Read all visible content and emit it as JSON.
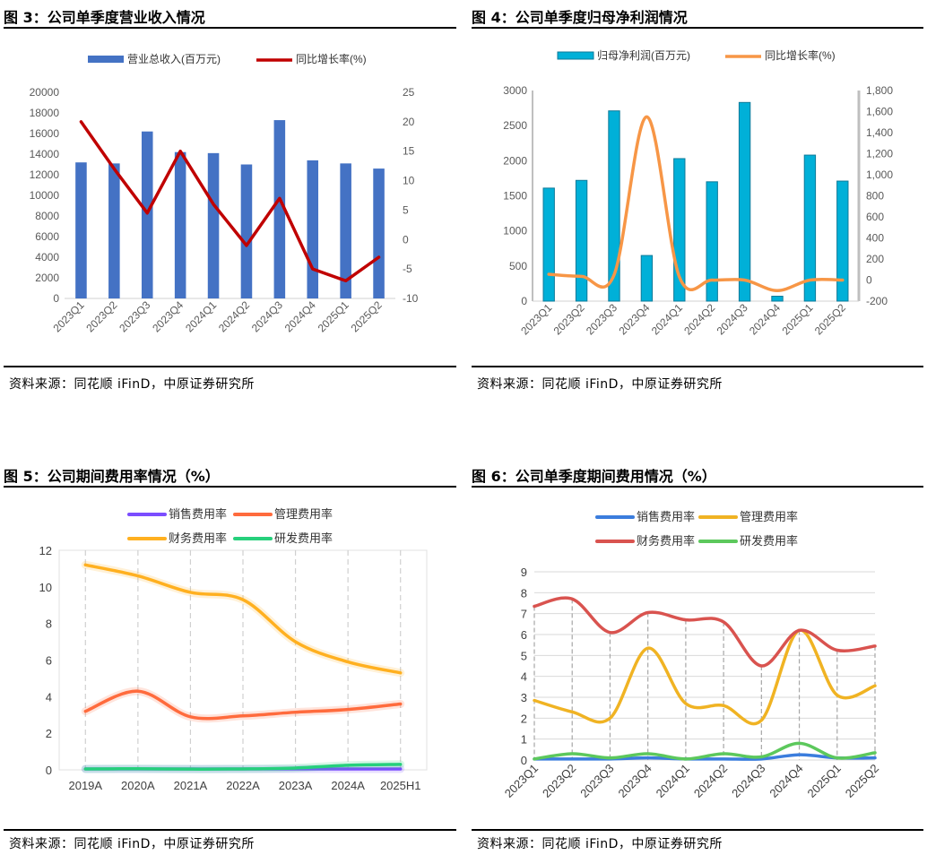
{
  "panels": [
    {
      "title": "图 3：公司单季度营业收入情况",
      "source": "资料来源：同花顺 iFinD，中原证券研究所"
    },
    {
      "title": "图 4：公司单季度归母净利润情况",
      "source": "资料来源：同花顺 iFinD，中原证券研究所"
    },
    {
      "title": "图 5：公司期间费用率情况（%）",
      "source": "资料来源：同花顺 iFinD，中原证券研究所"
    },
    {
      "title": "图 6：公司单季度期间费用情况（%）",
      "source": "资料来源：同花顺 iFinD，中原证券研究所"
    }
  ],
  "chart_data": [
    {
      "id": "fig3",
      "type": "bar+line",
      "categories": [
        "2023Q1",
        "2023Q2",
        "2023Q3",
        "2023Q4",
        "2024Q1",
        "2024Q2",
        "2024Q3",
        "2024Q4",
        "2025Q1",
        "2025Q2"
      ],
      "series": [
        {
          "name": "营业总收入(百万元)",
          "type": "bar",
          "axis": "left",
          "color": "#4472c4",
          "values": [
            13200,
            13100,
            16200,
            14200,
            14100,
            13000,
            17300,
            13400,
            13100,
            12600
          ]
        },
        {
          "name": "同比增长率(%)",
          "type": "line",
          "axis": "right",
          "color": "#c00000",
          "values": [
            20.0,
            12.0,
            4.5,
            15.0,
            6.0,
            -1.0,
            7.0,
            -5.0,
            -7.0,
            -3.0
          ]
        }
      ],
      "yleft": {
        "min": 0,
        "max": 20000,
        "step": 2000,
        "ticks": [
          "0",
          "2000",
          "4000",
          "6000",
          "8000",
          "10000",
          "12000",
          "14000",
          "16000",
          "18000",
          "20000"
        ]
      },
      "yright": {
        "min": -10,
        "max": 25,
        "step": 5,
        "ticks": [
          "-10",
          "-5",
          "0",
          "5",
          "10",
          "15",
          "20",
          "25"
        ]
      },
      "legend": "top"
    },
    {
      "id": "fig4",
      "type": "bar+line",
      "categories": [
        "2023Q1",
        "2023Q2",
        "2023Q3",
        "2023Q4",
        "2024Q1",
        "2024Q2",
        "2024Q3",
        "2024Q4",
        "2025Q1",
        "2025Q2"
      ],
      "series": [
        {
          "name": "归母净利润(百万元)",
          "type": "bar",
          "axis": "left",
          "color": "#00b0d8",
          "values": [
            1610,
            1720,
            2710,
            650,
            2030,
            1700,
            2830,
            70,
            2080,
            1710
          ]
        },
        {
          "name": "同比增长率(%)",
          "type": "line",
          "axis": "right",
          "color": "#f79646",
          "values": [
            55,
            35,
            50,
            1550,
            30,
            0,
            0,
            -100,
            0,
            0
          ]
        }
      ],
      "yleft": {
        "min": 0,
        "max": 3000,
        "step": 500,
        "ticks": [
          "0",
          "500",
          "1000",
          "1500",
          "2000",
          "2500",
          "3000"
        ]
      },
      "yright": {
        "min": -200,
        "max": 1800,
        "step": 200,
        "ticks": [
          "-200",
          "0",
          "200",
          "400",
          "600",
          "800",
          "1,000",
          "1,200",
          "1,400",
          "1,600",
          "1,800"
        ]
      },
      "legend": "top"
    },
    {
      "id": "fig5",
      "type": "line",
      "categories": [
        "2019A",
        "2020A",
        "2021A",
        "2022A",
        "2023A",
        "2024A",
        "2025H1"
      ],
      "series": [
        {
          "name": "销售费用率",
          "color": "#7b4dff",
          "values": [
            0.05,
            0.05,
            0.05,
            0.05,
            0.05,
            0.05,
            0.05
          ]
        },
        {
          "name": "管理费用率",
          "color": "#ff6b3d",
          "values": [
            3.2,
            4.3,
            2.9,
            2.95,
            3.15,
            3.3,
            3.6
          ]
        },
        {
          "name": "财务费用率",
          "color": "#ffb020",
          "values": [
            11.2,
            10.6,
            9.7,
            9.3,
            7.0,
            5.9,
            5.3
          ]
        },
        {
          "name": "研发费用率",
          "color": "#26d07c",
          "values": [
            0.05,
            0.06,
            0.04,
            0.05,
            0.1,
            0.25,
            0.3
          ]
        }
      ],
      "yaxis": {
        "min": 0,
        "max": 12,
        "step": 2,
        "ticks": [
          "0",
          "2",
          "4",
          "6",
          "8",
          "10",
          "12"
        ]
      },
      "legend": "top"
    },
    {
      "id": "fig6",
      "type": "line",
      "categories": [
        "2023Q1",
        "2023Q2",
        "2023Q3",
        "2023Q4",
        "2024Q1",
        "2024Q2",
        "2024Q3",
        "2024Q4",
        "2025Q1",
        "2025Q2"
      ],
      "series": [
        {
          "name": "销售费用率",
          "color": "#3b7ddd",
          "values": [
            0.05,
            0.05,
            0.05,
            0.1,
            0.05,
            0.05,
            0.05,
            0.25,
            0.1,
            0.1
          ]
        },
        {
          "name": "管理费用率",
          "color": "#f0b323",
          "values": [
            2.85,
            2.3,
            2.0,
            5.35,
            2.7,
            2.6,
            1.9,
            6.2,
            3.1,
            3.55
          ]
        },
        {
          "name": "财务费用率",
          "color": "#d9534f",
          "values": [
            7.35,
            7.7,
            6.1,
            7.05,
            6.7,
            6.6,
            4.5,
            6.2,
            5.25,
            5.45
          ]
        },
        {
          "name": "研发费用率",
          "color": "#5cc85c",
          "values": [
            0.05,
            0.3,
            0.1,
            0.3,
            0.05,
            0.3,
            0.15,
            0.8,
            0.1,
            0.35
          ]
        }
      ],
      "yaxis": {
        "min": 0,
        "max": 9,
        "step": 1,
        "ticks": [
          "0",
          "1",
          "2",
          "3",
          "4",
          "5",
          "6",
          "7",
          "8",
          "9"
        ]
      },
      "legend": "top"
    }
  ]
}
